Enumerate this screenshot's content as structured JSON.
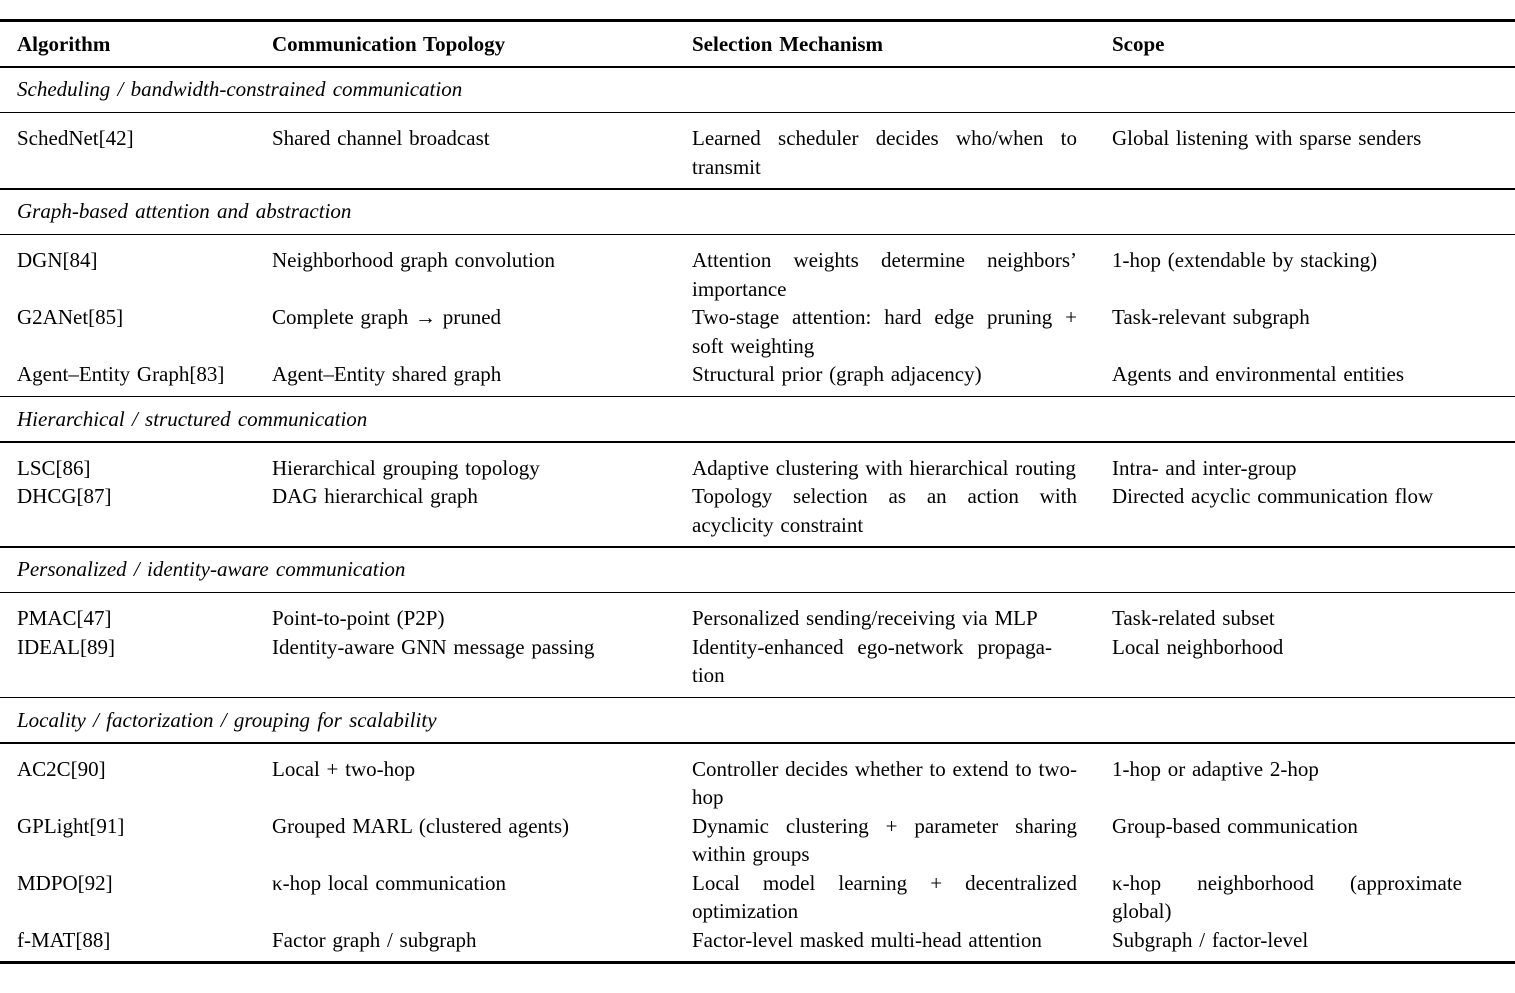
{
  "table": {
    "columns": [
      "Algorithm",
      "Communication Topology",
      "Selection Mechanism",
      "Scope"
    ],
    "sections": [
      {
        "title": "Scheduling / bandwidth-constrained communication",
        "rows": [
          {
            "algorithm": "SchedNet[42]",
            "topology": "Shared channel broadcast",
            "mechanism": "Learned scheduler decides who/when to transmit",
            "scope": "Global listening with sparse senders"
          }
        ]
      },
      {
        "title": "Graph-based attention and abstraction",
        "rows": [
          {
            "algorithm": "DGN[84]",
            "topology": "Neighborhood graph convolution",
            "mechanism": "Attention weights determine neighbors’ importance",
            "scope": "1-hop (extendable by stacking)"
          },
          {
            "algorithm": "G2ANet[85]",
            "topology": "Complete graph → pruned",
            "mechanism": "Two-stage attention: hard edge pruning + soft weighting",
            "scope": "Task-relevant subgraph"
          },
          {
            "algorithm": "Agent–Entity Graph[83]",
            "topology": "Agent–Entity shared graph",
            "mechanism": "Structural prior (graph adjacency)",
            "scope": "Agents and environmental entities"
          }
        ]
      },
      {
        "title": "Hierarchical / structured communication",
        "rows": [
          {
            "algorithm": "LSC[86]",
            "topology": "Hierarchical grouping topology",
            "mechanism": "Adaptive clustering with hierarchical routing",
            "scope": "Intra- and inter-group"
          },
          {
            "algorithm": "DHCG[87]",
            "topology": "DAG hierarchical graph",
            "mechanism": "Topology selection as an action with acyclicity constraint",
            "scope": "Directed acyclic communication flow"
          }
        ]
      },
      {
        "title": "Personalized / identity-aware communication",
        "rows": [
          {
            "algorithm": "PMAC[47]",
            "topology": "Point-to-point (P2P)",
            "mechanism": "Personalized sending/receiving via MLP",
            "scope": "Task-related subset"
          },
          {
            "algorithm": "IDEAL[89]",
            "topology": "Identity-aware GNN message passing",
            "mechanism": "Identity-enhanced ego-network propaga­tion",
            "scope": "Local neighborhood"
          }
        ]
      },
      {
        "title": "Locality / factorization / grouping for scalability",
        "rows": [
          {
            "algorithm": "AC2C[90]",
            "topology": "Local + two-hop",
            "mechanism": "Controller decides whether to extend to two-hop",
            "scope": "1-hop or adaptive 2-hop"
          },
          {
            "algorithm": "GPLight[91]",
            "topology": "Grouped MARL (clustered agents)",
            "mechanism": "Dynamic clustering + parameter sharing within groups",
            "scope": "Group-based communication"
          },
          {
            "algorithm": "MDPO[92]",
            "topology": "κ-hop local communication",
            "mechanism": "Local model learning + decentralized optimization",
            "scope": "κ-hop neighborhood (approximate global)"
          },
          {
            "algorithm": "f-MAT[88]",
            "topology": "Factor graph / subgraph",
            "mechanism": "Factor-level masked multi-head attention",
            "scope": "Subgraph / factor-level"
          }
        ]
      }
    ]
  }
}
